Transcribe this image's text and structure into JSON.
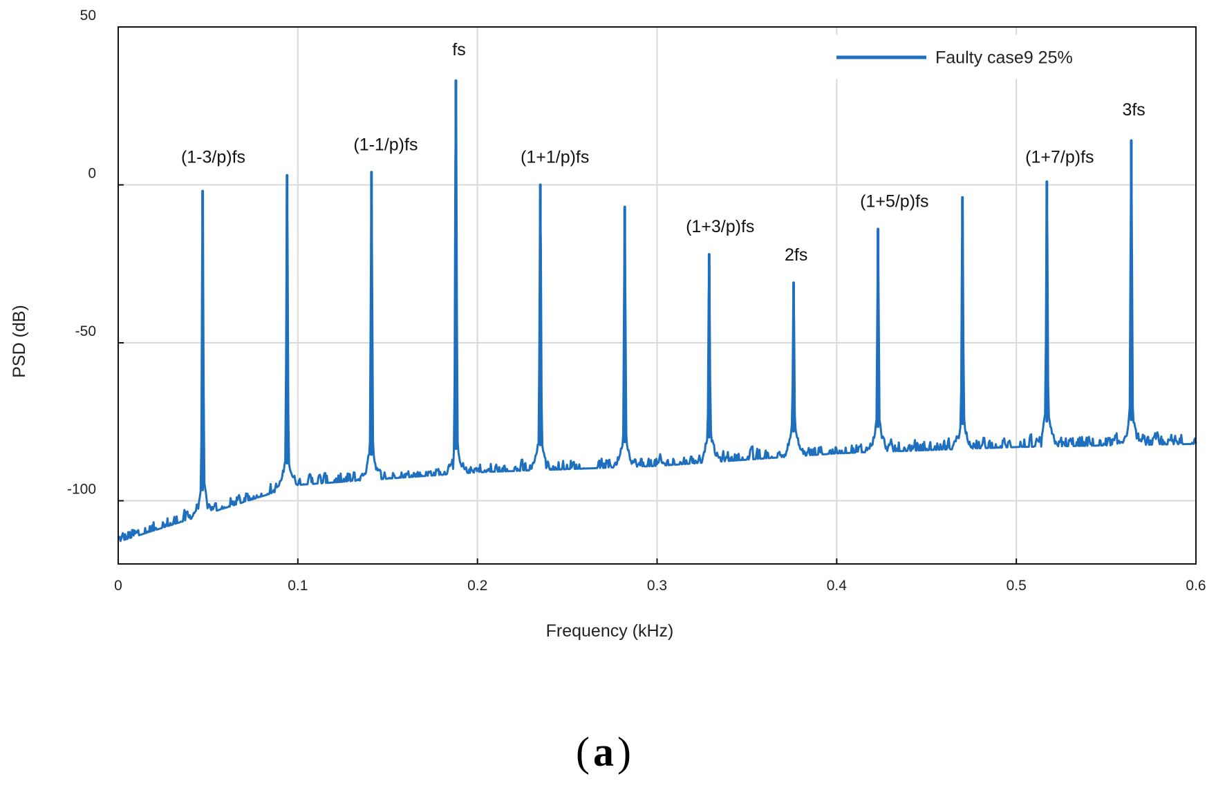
{
  "chart_data": {
    "type": "line",
    "title": "",
    "xlabel": "Frequency (kHz)",
    "ylabel": "PSD (dB)",
    "xlim": [
      0,
      0.6
    ],
    "ylim": [
      -120,
      50
    ],
    "x_ticks": [
      0,
      0.1,
      0.2,
      0.3,
      0.4,
      0.5,
      0.6
    ],
    "x_tick_labels": [
      "0",
      "0.1",
      "0.2",
      "0.3",
      "0.4",
      "0.5",
      "0.6"
    ],
    "y_ticks": [
      -100,
      -50,
      0,
      50
    ],
    "y_tick_labels": [
      "-100",
      "-50",
      "0",
      "50"
    ],
    "grid": true,
    "legend": {
      "position": "top-right",
      "entries": [
        "Faulty case9 25%"
      ]
    },
    "series": [
      {
        "name": "Faulty case9 25%",
        "color": "#1f6fbf",
        "noise_floor": {
          "x_kHz": [
            0,
            0.05,
            0.1,
            0.2,
            0.3,
            0.4,
            0.5,
            0.6
          ],
          "psd_dB": [
            -113,
            -104,
            -95,
            -91,
            -89,
            -85,
            -83,
            -82
          ]
        },
        "peaks": [
          {
            "x_kHz": 0.047,
            "psd_dB": -2
          },
          {
            "x_kHz": 0.094,
            "psd_dB": 3
          },
          {
            "x_kHz": 0.141,
            "psd_dB": 4
          },
          {
            "x_kHz": 0.188,
            "psd_dB": 33
          },
          {
            "x_kHz": 0.235,
            "psd_dB": 0
          },
          {
            "x_kHz": 0.282,
            "psd_dB": -7
          },
          {
            "x_kHz": 0.329,
            "psd_dB": -22
          },
          {
            "x_kHz": 0.376,
            "psd_dB": -31
          },
          {
            "x_kHz": 0.423,
            "psd_dB": -14
          },
          {
            "x_kHz": 0.47,
            "psd_dB": -4
          },
          {
            "x_kHz": 0.517,
            "psd_dB": 1
          },
          {
            "x_kHz": 0.564,
            "psd_dB": 14
          }
        ]
      }
    ],
    "annotations": [
      {
        "text": "(1-3/p)fs",
        "x_kHz": 0.035,
        "psd_dB": 7
      },
      {
        "text": "(1-1/p)fs",
        "x_kHz": 0.131,
        "psd_dB": 11
      },
      {
        "text": "fs",
        "x_kHz": 0.186,
        "psd_dB": 41
      },
      {
        "text": "(1+1/p)fs",
        "x_kHz": 0.224,
        "psd_dB": 7
      },
      {
        "text": "(1+3/p)fs",
        "x_kHz": 0.316,
        "psd_dB": -15
      },
      {
        "text": "2fs",
        "x_kHz": 0.371,
        "psd_dB": -24
      },
      {
        "text": "(1+5/p)fs",
        "x_kHz": 0.413,
        "psd_dB": -7
      },
      {
        "text": "(1+7/p)fs",
        "x_kHz": 0.505,
        "psd_dB": 7
      },
      {
        "text": "3fs",
        "x_kHz": 0.559,
        "psd_dB": 22
      }
    ]
  },
  "caption": {
    "letter": "a",
    "open_paren": "(",
    "close_paren": ")"
  }
}
